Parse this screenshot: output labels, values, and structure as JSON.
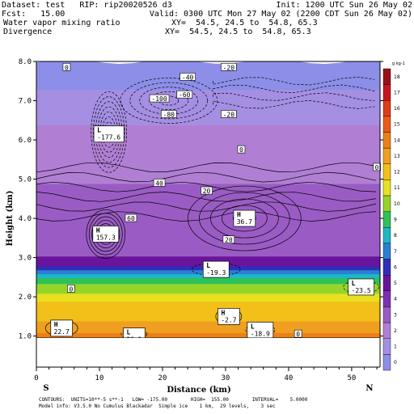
{
  "header": {
    "line1_left": "Dataset: test   RIP: rip20020526 d3",
    "line1_right": "Init: 1200 UTC Sun 26 May 02",
    "line2_left": "Fcst:   15.00",
    "line2_right": "Valid: 0300 UTC Mon 27 May 02 (2200 CDT Sun 26 May 02)",
    "line3_left": "Water vapor mixing ratio",
    "line3_right": "XY=  54.5, 24.5 to  54.8, 65.3",
    "line4_left": "Divergence",
    "line4_right": "XY=  54.5, 24.5 to  54.8, 65.3"
  },
  "footer": {
    "line1": "CONTOURS:  UNITS=10**-5 s**-1   LOW= -175.00        HIGH=  155.00        INTERVAL=    5.0000",
    "line2": "Model info: V3.5.0 No Cumulus Blackadar  Simple ice    1 km,  29 levels,    3 sec"
  },
  "colors": {
    "bands": [
      "#8d8ee8",
      "#a58fe3",
      "#b07fd4",
      "#9a5cc4",
      "#7f2fb4",
      "#6a149c",
      "#2f2fb8",
      "#2a7fd4",
      "#1fb7c8",
      "#2ec25a",
      "#96d42a",
      "#e8e020",
      "#f2c018",
      "#f0a020",
      "#ec8018",
      "#ec5a18",
      "#e03a18",
      "#c81420",
      "#981018"
    ]
  },
  "chart_data": {
    "type": "contour",
    "xlabel": "Distance (km)",
    "ylabel": "Height (km)",
    "xlim": [
      0,
      54.5
    ],
    "ylim": [
      0.95,
      8.0
    ],
    "xticks": [
      0,
      10,
      20,
      30,
      40,
      50
    ],
    "yticks": [
      1.0,
      2.0,
      3.0,
      4.0,
      5.0,
      6.0,
      7.0,
      8.0
    ],
    "xticklabels": [
      "0",
      "10",
      "20",
      "30",
      "40",
      "50"
    ],
    "yticklabels": [
      "1.0",
      "2.0",
      "3.0",
      "4.0",
      "5.0",
      "6.0",
      "7.0",
      "8.0"
    ],
    "left_end_label": "S",
    "right_end_label": "N",
    "fill_variable": "Water vapor mixing ratio",
    "line_variable": "Divergence",
    "colorbar": {
      "unit_label": "g kg-1",
      "labels": [
        "18",
        "17",
        "16",
        "15",
        "14",
        "13",
        "12",
        "11",
        "10",
        "9",
        "8",
        "7",
        "6",
        "5",
        "4",
        "3",
        "2",
        "1",
        "0"
      ]
    },
    "fill_layers": [
      {
        "bottom": 0.95,
        "top": 1.2,
        "band": 14
      },
      {
        "bottom": 1.2,
        "top": 1.5,
        "band": 13
      },
      {
        "bottom": 1.5,
        "top": 2.0,
        "band": 12
      },
      {
        "bottom": 2.0,
        "top": 2.2,
        "band": 11
      },
      {
        "bottom": 2.2,
        "top": 2.45,
        "band": 10
      },
      {
        "bottom": 2.45,
        "top": 2.6,
        "band": 9
      },
      {
        "bottom": 2.6,
        "top": 2.7,
        "band": 8
      },
      {
        "bottom": 2.7,
        "top": 2.8,
        "band": 7
      },
      {
        "bottom": 2.8,
        "top": 2.9,
        "band": 6
      },
      {
        "bottom": 2.9,
        "top": 3.15,
        "band": 5
      },
      {
        "bottom": 3.15,
        "top": 5.0,
        "band": 3
      },
      {
        "bottom": 5.0,
        "top": 6.5,
        "band": 2
      },
      {
        "bottom": 6.5,
        "top": 7.4,
        "band": 1
      },
      {
        "bottom": 7.4,
        "top": 8.0,
        "band": 0
      }
    ],
    "extremes": [
      {
        "kind": "L",
        "value": "-177.6",
        "x": 11.5,
        "y": 6.15
      },
      {
        "kind": "H",
        "value": "157.3",
        "x": 11.0,
        "y": 3.6
      },
      {
        "kind": "H",
        "value": "36.7",
        "x": 33.0,
        "y": 4.0
      },
      {
        "kind": "L",
        "value": "-19.3",
        "x": 28.5,
        "y": 2.7
      },
      {
        "kind": "L",
        "value": "-23.5",
        "x": 51.5,
        "y": 2.25
      },
      {
        "kind": "H",
        "value": "-2.7",
        "x": 30.5,
        "y": 1.5
      },
      {
        "kind": "L",
        "value": "-18.9",
        "x": 35.5,
        "y": 1.15
      },
      {
        "kind": "H",
        "value": "22.7",
        "x": 4.0,
        "y": 1.2
      },
      {
        "kind": "L",
        "value": "36.1",
        "x": 15.5,
        "y": 1.0
      }
    ],
    "contour_labels": [
      {
        "text": "0",
        "x": 4.8,
        "y": 7.85
      },
      {
        "text": "-20",
        "x": 30.5,
        "y": 7.85
      },
      {
        "text": "-40",
        "x": 24.0,
        "y": 7.6
      },
      {
        "text": "-60",
        "x": 23.5,
        "y": 7.15
      },
      {
        "text": "-100",
        "x": 19.5,
        "y": 7.05
      },
      {
        "text": "-80",
        "x": 21.0,
        "y": 6.65
      },
      {
        "text": "-20",
        "x": 30.5,
        "y": 6.65
      },
      {
        "text": "0",
        "x": 32.5,
        "y": 5.75
      },
      {
        "text": "0",
        "x": 54.0,
        "y": 5.3
      },
      {
        "text": "40",
        "x": 19.5,
        "y": 4.9
      },
      {
        "text": "20",
        "x": 27.0,
        "y": 4.7
      },
      {
        "text": "60",
        "x": 15.0,
        "y": 4.0
      },
      {
        "text": "20",
        "x": 30.5,
        "y": 3.45
      },
      {
        "text": "0",
        "x": 5.5,
        "y": 2.2
      },
      {
        "text": "0",
        "x": 41.5,
        "y": 1.05
      }
    ]
  }
}
